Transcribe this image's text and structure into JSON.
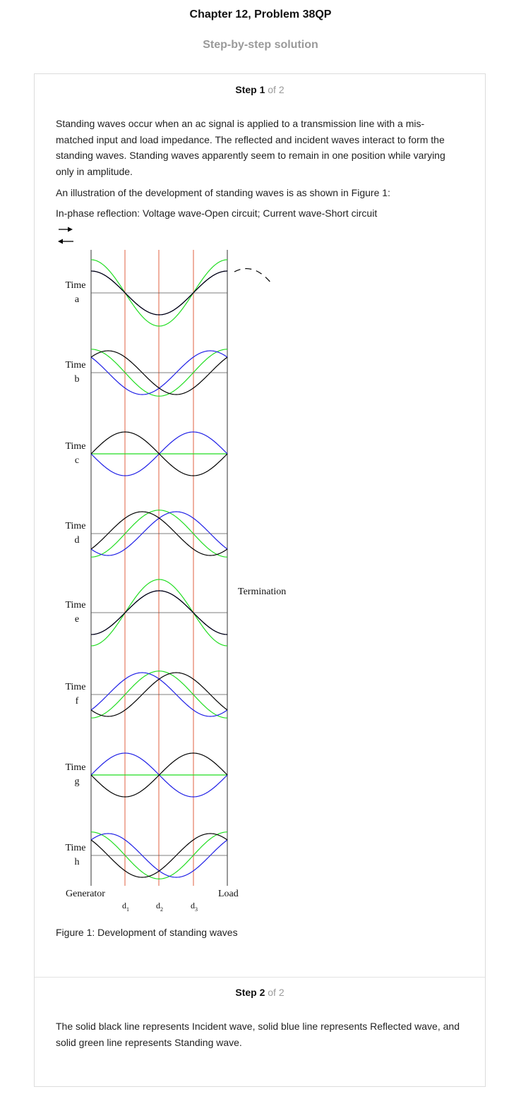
{
  "header": {
    "title": "Chapter 12, Problem 38QP",
    "subtitle": "Step-by-step solution"
  },
  "step1": {
    "label": "Step 1",
    "of": "of 2",
    "para1": "Standing waves occur when an ac signal is applied to a transmission line with a mis-matched input and load impedance. The reflected and incident waves interact to form the standing waves. Standing waves apparently seem to remain in one position while varying only in amplitude.",
    "para2": "An illustration of the development of standing waves is as shown in Figure 1:",
    "para3": "In-phase reflection: Voltage wave-Open circuit; Current wave-Short circuit",
    "caption": "Figure 1: Development of standing waves"
  },
  "figure": {
    "rows": [
      {
        "word": "Time",
        "letter": "a"
      },
      {
        "word": "Time",
        "letter": "b"
      },
      {
        "word": "Time",
        "letter": "c"
      },
      {
        "word": "Time",
        "letter": "d"
      },
      {
        "word": "Time",
        "letter": "e"
      },
      {
        "word": "Time",
        "letter": "f"
      },
      {
        "word": "Time",
        "letter": "g"
      },
      {
        "word": "Time",
        "letter": "h"
      }
    ],
    "generator": "Generator",
    "load": "Load",
    "termination": "Termination",
    "d_labels": [
      "d",
      "d",
      "d"
    ],
    "d_subs": [
      "1",
      "2",
      "3"
    ],
    "colors": {
      "incident": "#000000",
      "reflected": "#1f1fe6",
      "standing": "#22dd22",
      "marker": "#e06040"
    }
  },
  "step2": {
    "label": "Step 2",
    "of": "of 2",
    "para": "The solid black line represents Incident wave, solid blue line represents Reflected wave, and solid green line represents Standing wave."
  }
}
